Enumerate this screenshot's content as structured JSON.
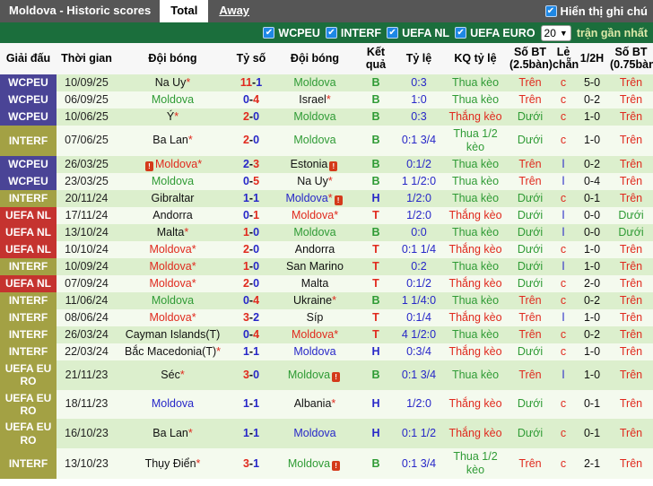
{
  "title_bar": {
    "title": "Moldova - Historic scores",
    "tabs": [
      {
        "label": "Total",
        "active": true
      },
      {
        "label": "Away",
        "active": false
      }
    ],
    "notes_toggle": {
      "label": "Hiển thị ghi chú",
      "checked": true,
      "check_glyph": "✔"
    }
  },
  "filter_bar": {
    "competitions": [
      {
        "label": "WCPEU",
        "checked": true
      },
      {
        "label": "INTERF",
        "checked": true
      },
      {
        "label": "UEFA NL",
        "checked": true
      },
      {
        "label": "UEFA EURO",
        "checked": true
      }
    ],
    "count_select": {
      "value": "20",
      "chevron": "▼"
    },
    "suffix_label": "trận gần nhất"
  },
  "colors": {
    "accent_green_bar": "#1b6e3c",
    "league_wcpeu": "#4a4496",
    "league_interf": "#a3a144",
    "league_uefanl": "#c5332f",
    "win_red": "#e02a1e",
    "loss_green": "#2f9b35",
    "draw_blue": "#2727c8",
    "checkbox_blue": "#1e88e5"
  },
  "table": {
    "headers": [
      "Giải đấu",
      "Thời gian",
      "Đội bóng",
      "Tỷ số",
      "Đội bóng",
      "Kết quả",
      "Tỷ lệ",
      "KQ tỷ lệ",
      "Số BT (2.5bàn)",
      "Lẻ chẵn",
      "1/2H",
      "Số BT (0.75bàn)"
    ],
    "rows": [
      {
        "league": "WCPEU",
        "league_color": "purple",
        "date": "10/09/25",
        "home": {
          "name": "Na Uy",
          "star": true,
          "color": "black"
        },
        "score": {
          "home": "11",
          "away": "1"
        },
        "away": {
          "name": "Moldova",
          "star": false,
          "color": "green"
        },
        "result": {
          "text": "B",
          "color": "green"
        },
        "odds": "0:3",
        "odds_result": {
          "text": "Thua kèo",
          "color": "green"
        },
        "goals25": {
          "text": "Trên",
          "color": "red"
        },
        "odd_even": {
          "text": "c",
          "color": "red"
        },
        "half": "5-0",
        "goals075": {
          "text": "Trên",
          "color": "red"
        }
      },
      {
        "league": "WCPEU",
        "league_color": "purple",
        "date": "06/09/25",
        "home": {
          "name": "Moldova",
          "star": false,
          "color": "green"
        },
        "score": {
          "home": "0",
          "away": "4"
        },
        "away": {
          "name": "Israel",
          "star": true,
          "color": "black"
        },
        "result": {
          "text": "B",
          "color": "green"
        },
        "odds": "1:0",
        "odds_result": {
          "text": "Thua kèo",
          "color": "green"
        },
        "goals25": {
          "text": "Trên",
          "color": "red"
        },
        "odd_even": {
          "text": "c",
          "color": "red"
        },
        "half": "0-2",
        "goals075": {
          "text": "Trên",
          "color": "red"
        }
      },
      {
        "league": "WCPEU",
        "league_color": "purple",
        "date": "10/06/25",
        "home": {
          "name": "Ý",
          "star": true,
          "color": "black"
        },
        "score": {
          "home": "2",
          "away": "0"
        },
        "away": {
          "name": "Moldova",
          "star": false,
          "color": "green"
        },
        "result": {
          "text": "B",
          "color": "green"
        },
        "odds": "0:3",
        "odds_result": {
          "text": "Thắng kèo",
          "color": "red"
        },
        "goals25": {
          "text": "Dưới",
          "color": "green"
        },
        "odd_even": {
          "text": "c",
          "color": "red"
        },
        "half": "1-0",
        "goals075": {
          "text": "Trên",
          "color": "red"
        }
      },
      {
        "league": "INTERF",
        "league_color": "olive",
        "date": "07/06/25",
        "home": {
          "name": "Ba Lan",
          "star": true,
          "color": "black"
        },
        "score": {
          "home": "2",
          "away": "0"
        },
        "away": {
          "name": "Moldova",
          "star": false,
          "color": "green"
        },
        "result": {
          "text": "B",
          "color": "green"
        },
        "odds": "0:1 3/4",
        "odds_result": {
          "text": "Thua 1/2 kèo",
          "color": "green"
        },
        "goals25": {
          "text": "Dưới",
          "color": "green"
        },
        "odd_even": {
          "text": "c",
          "color": "red"
        },
        "half": "1-0",
        "goals075": {
          "text": "Trên",
          "color": "red"
        }
      },
      {
        "league": "WCPEU",
        "league_color": "purple",
        "date": "26/03/25",
        "home": {
          "name": "Moldova",
          "star": true,
          "color": "red",
          "card_before": true
        },
        "score": {
          "home": "2",
          "away": "3"
        },
        "away": {
          "name": "Estonia",
          "star": false,
          "color": "black",
          "card_after": true
        },
        "result": {
          "text": "B",
          "color": "green"
        },
        "odds": "0:1/2",
        "odds_result": {
          "text": "Thua kèo",
          "color": "green"
        },
        "goals25": {
          "text": "Trên",
          "color": "red"
        },
        "odd_even": {
          "text": "l",
          "color": "blue"
        },
        "half": "0-2",
        "goals075": {
          "text": "Trên",
          "color": "red"
        }
      },
      {
        "league": "WCPEU",
        "league_color": "purple",
        "date": "23/03/25",
        "home": {
          "name": "Moldova",
          "star": false,
          "color": "green"
        },
        "score": {
          "home": "0",
          "away": "5"
        },
        "away": {
          "name": "Na Uy",
          "star": true,
          "color": "black"
        },
        "result": {
          "text": "B",
          "color": "green"
        },
        "odds": "1 1/2:0",
        "odds_result": {
          "text": "Thua kèo",
          "color": "green"
        },
        "goals25": {
          "text": "Trên",
          "color": "red"
        },
        "odd_even": {
          "text": "l",
          "color": "blue"
        },
        "half": "0-4",
        "goals075": {
          "text": "Trên",
          "color": "red"
        }
      },
      {
        "league": "INTERF",
        "league_color": "olive",
        "date": "20/11/24",
        "home": {
          "name": "Gibraltar",
          "star": false,
          "color": "black"
        },
        "score": {
          "home": "1",
          "away": "1"
        },
        "away": {
          "name": "Moldova",
          "star": true,
          "color": "blue",
          "card_after": true
        },
        "result": {
          "text": "H",
          "color": "blue"
        },
        "odds": "1/2:0",
        "odds_result": {
          "text": "Thua kèo",
          "color": "green"
        },
        "goals25": {
          "text": "Dưới",
          "color": "green"
        },
        "odd_even": {
          "text": "c",
          "color": "red"
        },
        "half": "0-1",
        "goals075": {
          "text": "Trên",
          "color": "red"
        }
      },
      {
        "league": "UEFA NL",
        "league_color": "red",
        "date": "17/11/24",
        "home": {
          "name": "Andorra",
          "star": false,
          "color": "black"
        },
        "score": {
          "home": "0",
          "away": "1"
        },
        "away": {
          "name": "Moldova",
          "star": true,
          "color": "red"
        },
        "result": {
          "text": "T",
          "color": "red"
        },
        "odds": "1/2:0",
        "odds_result": {
          "text": "Thắng kèo",
          "color": "red"
        },
        "goals25": {
          "text": "Dưới",
          "color": "green"
        },
        "odd_even": {
          "text": "l",
          "color": "blue"
        },
        "half": "0-0",
        "goals075": {
          "text": "Dưới",
          "color": "green"
        }
      },
      {
        "league": "UEFA NL",
        "league_color": "red",
        "date": "13/10/24",
        "home": {
          "name": "Malta",
          "star": true,
          "color": "black"
        },
        "score": {
          "home": "1",
          "away": "0"
        },
        "away": {
          "name": "Moldova",
          "star": false,
          "color": "green"
        },
        "result": {
          "text": "B",
          "color": "green"
        },
        "odds": "0:0",
        "odds_result": {
          "text": "Thua kèo",
          "color": "green"
        },
        "goals25": {
          "text": "Dưới",
          "color": "green"
        },
        "odd_even": {
          "text": "l",
          "color": "blue"
        },
        "half": "0-0",
        "goals075": {
          "text": "Dưới",
          "color": "green"
        }
      },
      {
        "league": "UEFA NL",
        "league_color": "red",
        "date": "10/10/24",
        "home": {
          "name": "Moldova",
          "star": true,
          "color": "red"
        },
        "score": {
          "home": "2",
          "away": "0"
        },
        "away": {
          "name": "Andorra",
          "star": false,
          "color": "black"
        },
        "result": {
          "text": "T",
          "color": "red"
        },
        "odds": "0:1 1/4",
        "odds_result": {
          "text": "Thắng kèo",
          "color": "red"
        },
        "goals25": {
          "text": "Dưới",
          "color": "green"
        },
        "odd_even": {
          "text": "c",
          "color": "red"
        },
        "half": "1-0",
        "goals075": {
          "text": "Trên",
          "color": "red"
        }
      },
      {
        "league": "INTERF",
        "league_color": "olive",
        "date": "10/09/24",
        "home": {
          "name": "Moldova",
          "star": true,
          "color": "red"
        },
        "score": {
          "home": "1",
          "away": "0"
        },
        "away": {
          "name": "San Marino",
          "star": false,
          "color": "black"
        },
        "result": {
          "text": "T",
          "color": "red"
        },
        "odds": "0:2",
        "odds_result": {
          "text": "Thua kèo",
          "color": "green"
        },
        "goals25": {
          "text": "Dưới",
          "color": "green"
        },
        "odd_even": {
          "text": "l",
          "color": "blue"
        },
        "half": "1-0",
        "goals075": {
          "text": "Trên",
          "color": "red"
        }
      },
      {
        "league": "UEFA NL",
        "league_color": "red",
        "date": "07/09/24",
        "home": {
          "name": "Moldova",
          "star": true,
          "color": "red"
        },
        "score": {
          "home": "2",
          "away": "0"
        },
        "away": {
          "name": "Malta",
          "star": false,
          "color": "black"
        },
        "result": {
          "text": "T",
          "color": "red"
        },
        "odds": "0:1/2",
        "odds_result": {
          "text": "Thắng kèo",
          "color": "red"
        },
        "goals25": {
          "text": "Dưới",
          "color": "green"
        },
        "odd_even": {
          "text": "c",
          "color": "red"
        },
        "half": "2-0",
        "goals075": {
          "text": "Trên",
          "color": "red"
        }
      },
      {
        "league": "INTERF",
        "league_color": "olive",
        "date": "11/06/24",
        "home": {
          "name": "Moldova",
          "star": false,
          "color": "green"
        },
        "score": {
          "home": "0",
          "away": "4"
        },
        "away": {
          "name": "Ukraine",
          "star": true,
          "color": "black"
        },
        "result": {
          "text": "B",
          "color": "green"
        },
        "odds": "1 1/4:0",
        "odds_result": {
          "text": "Thua kèo",
          "color": "green"
        },
        "goals25": {
          "text": "Trên",
          "color": "red"
        },
        "odd_even": {
          "text": "c",
          "color": "red"
        },
        "half": "0-2",
        "goals075": {
          "text": "Trên",
          "color": "red"
        }
      },
      {
        "league": "INTERF",
        "league_color": "olive",
        "date": "08/06/24",
        "home": {
          "name": "Moldova",
          "star": true,
          "color": "red"
        },
        "score": {
          "home": "3",
          "away": "2"
        },
        "away": {
          "name": "Síp",
          "star": false,
          "color": "black"
        },
        "result": {
          "text": "T",
          "color": "red"
        },
        "odds": "0:1/4",
        "odds_result": {
          "text": "Thắng kèo",
          "color": "red"
        },
        "goals25": {
          "text": "Trên",
          "color": "red"
        },
        "odd_even": {
          "text": "l",
          "color": "blue"
        },
        "half": "1-0",
        "goals075": {
          "text": "Trên",
          "color": "red"
        }
      },
      {
        "league": "INTERF",
        "league_color": "olive",
        "date": "26/03/24",
        "home": {
          "name": "Cayman Islands(T)",
          "star": false,
          "color": "black"
        },
        "score": {
          "home": "0",
          "away": "4"
        },
        "away": {
          "name": "Moldova",
          "star": true,
          "color": "red"
        },
        "result": {
          "text": "T",
          "color": "red"
        },
        "odds": "4 1/2:0",
        "odds_result": {
          "text": "Thua kèo",
          "color": "green"
        },
        "goals25": {
          "text": "Trên",
          "color": "red"
        },
        "odd_even": {
          "text": "c",
          "color": "red"
        },
        "half": "0-2",
        "goals075": {
          "text": "Trên",
          "color": "red"
        }
      },
      {
        "league": "INTERF",
        "league_color": "olive",
        "date": "22/03/24",
        "home": {
          "name": "Bắc Macedonia(T)",
          "star": true,
          "color": "black"
        },
        "score": {
          "home": "1",
          "away": "1"
        },
        "away": {
          "name": "Moldova",
          "star": false,
          "color": "blue"
        },
        "result": {
          "text": "H",
          "color": "blue"
        },
        "odds": "0:3/4",
        "odds_result": {
          "text": "Thắng kèo",
          "color": "red"
        },
        "goals25": {
          "text": "Dưới",
          "color": "green"
        },
        "odd_even": {
          "text": "c",
          "color": "red"
        },
        "half": "1-0",
        "goals075": {
          "text": "Trên",
          "color": "red"
        }
      },
      {
        "league": "UEFA EURO",
        "league_color": "olive",
        "date": "21/11/23",
        "home": {
          "name": "Séc",
          "star": true,
          "color": "black"
        },
        "score": {
          "home": "3",
          "away": "0"
        },
        "away": {
          "name": "Moldova",
          "star": false,
          "color": "green",
          "card_after": true
        },
        "result": {
          "text": "B",
          "color": "green"
        },
        "odds": "0:1 3/4",
        "odds_result": {
          "text": "Thua kèo",
          "color": "green"
        },
        "goals25": {
          "text": "Trên",
          "color": "red"
        },
        "odd_even": {
          "text": "l",
          "color": "blue"
        },
        "half": "1-0",
        "goals075": {
          "text": "Trên",
          "color": "red"
        }
      },
      {
        "league": "UEFA EURO",
        "league_color": "olive",
        "date": "18/11/23",
        "home": {
          "name": "Moldova",
          "star": false,
          "color": "blue"
        },
        "score": {
          "home": "1",
          "away": "1"
        },
        "away": {
          "name": "Albania",
          "star": true,
          "color": "black"
        },
        "result": {
          "text": "H",
          "color": "blue"
        },
        "odds": "1/2:0",
        "odds_result": {
          "text": "Thắng kèo",
          "color": "red"
        },
        "goals25": {
          "text": "Dưới",
          "color": "green"
        },
        "odd_even": {
          "text": "c",
          "color": "red"
        },
        "half": "0-1",
        "goals075": {
          "text": "Trên",
          "color": "red"
        }
      },
      {
        "league": "UEFA EURO",
        "league_color": "olive",
        "date": "16/10/23",
        "home": {
          "name": "Ba Lan",
          "star": true,
          "color": "black"
        },
        "score": {
          "home": "1",
          "away": "1"
        },
        "away": {
          "name": "Moldova",
          "star": false,
          "color": "blue"
        },
        "result": {
          "text": "H",
          "color": "blue"
        },
        "odds": "0:1 1/2",
        "odds_result": {
          "text": "Thắng kèo",
          "color": "red"
        },
        "goals25": {
          "text": "Dưới",
          "color": "green"
        },
        "odd_even": {
          "text": "c",
          "color": "red"
        },
        "half": "0-1",
        "goals075": {
          "text": "Trên",
          "color": "red"
        }
      },
      {
        "league": "INTERF",
        "league_color": "olive",
        "date": "13/10/23",
        "home": {
          "name": "Thụy Điển",
          "star": true,
          "color": "black"
        },
        "score": {
          "home": "3",
          "away": "1"
        },
        "away": {
          "name": "Moldova",
          "star": false,
          "color": "green",
          "card_after": true
        },
        "result": {
          "text": "B",
          "color": "green"
        },
        "odds": "0:1 3/4",
        "odds_result": {
          "text": "Thua 1/2 kèo",
          "color": "green"
        },
        "goals25": {
          "text": "Trên",
          "color": "red"
        },
        "odd_even": {
          "text": "c",
          "color": "red"
        },
        "half": "2-1",
        "goals075": {
          "text": "Trên",
          "color": "red"
        }
      }
    ]
  }
}
